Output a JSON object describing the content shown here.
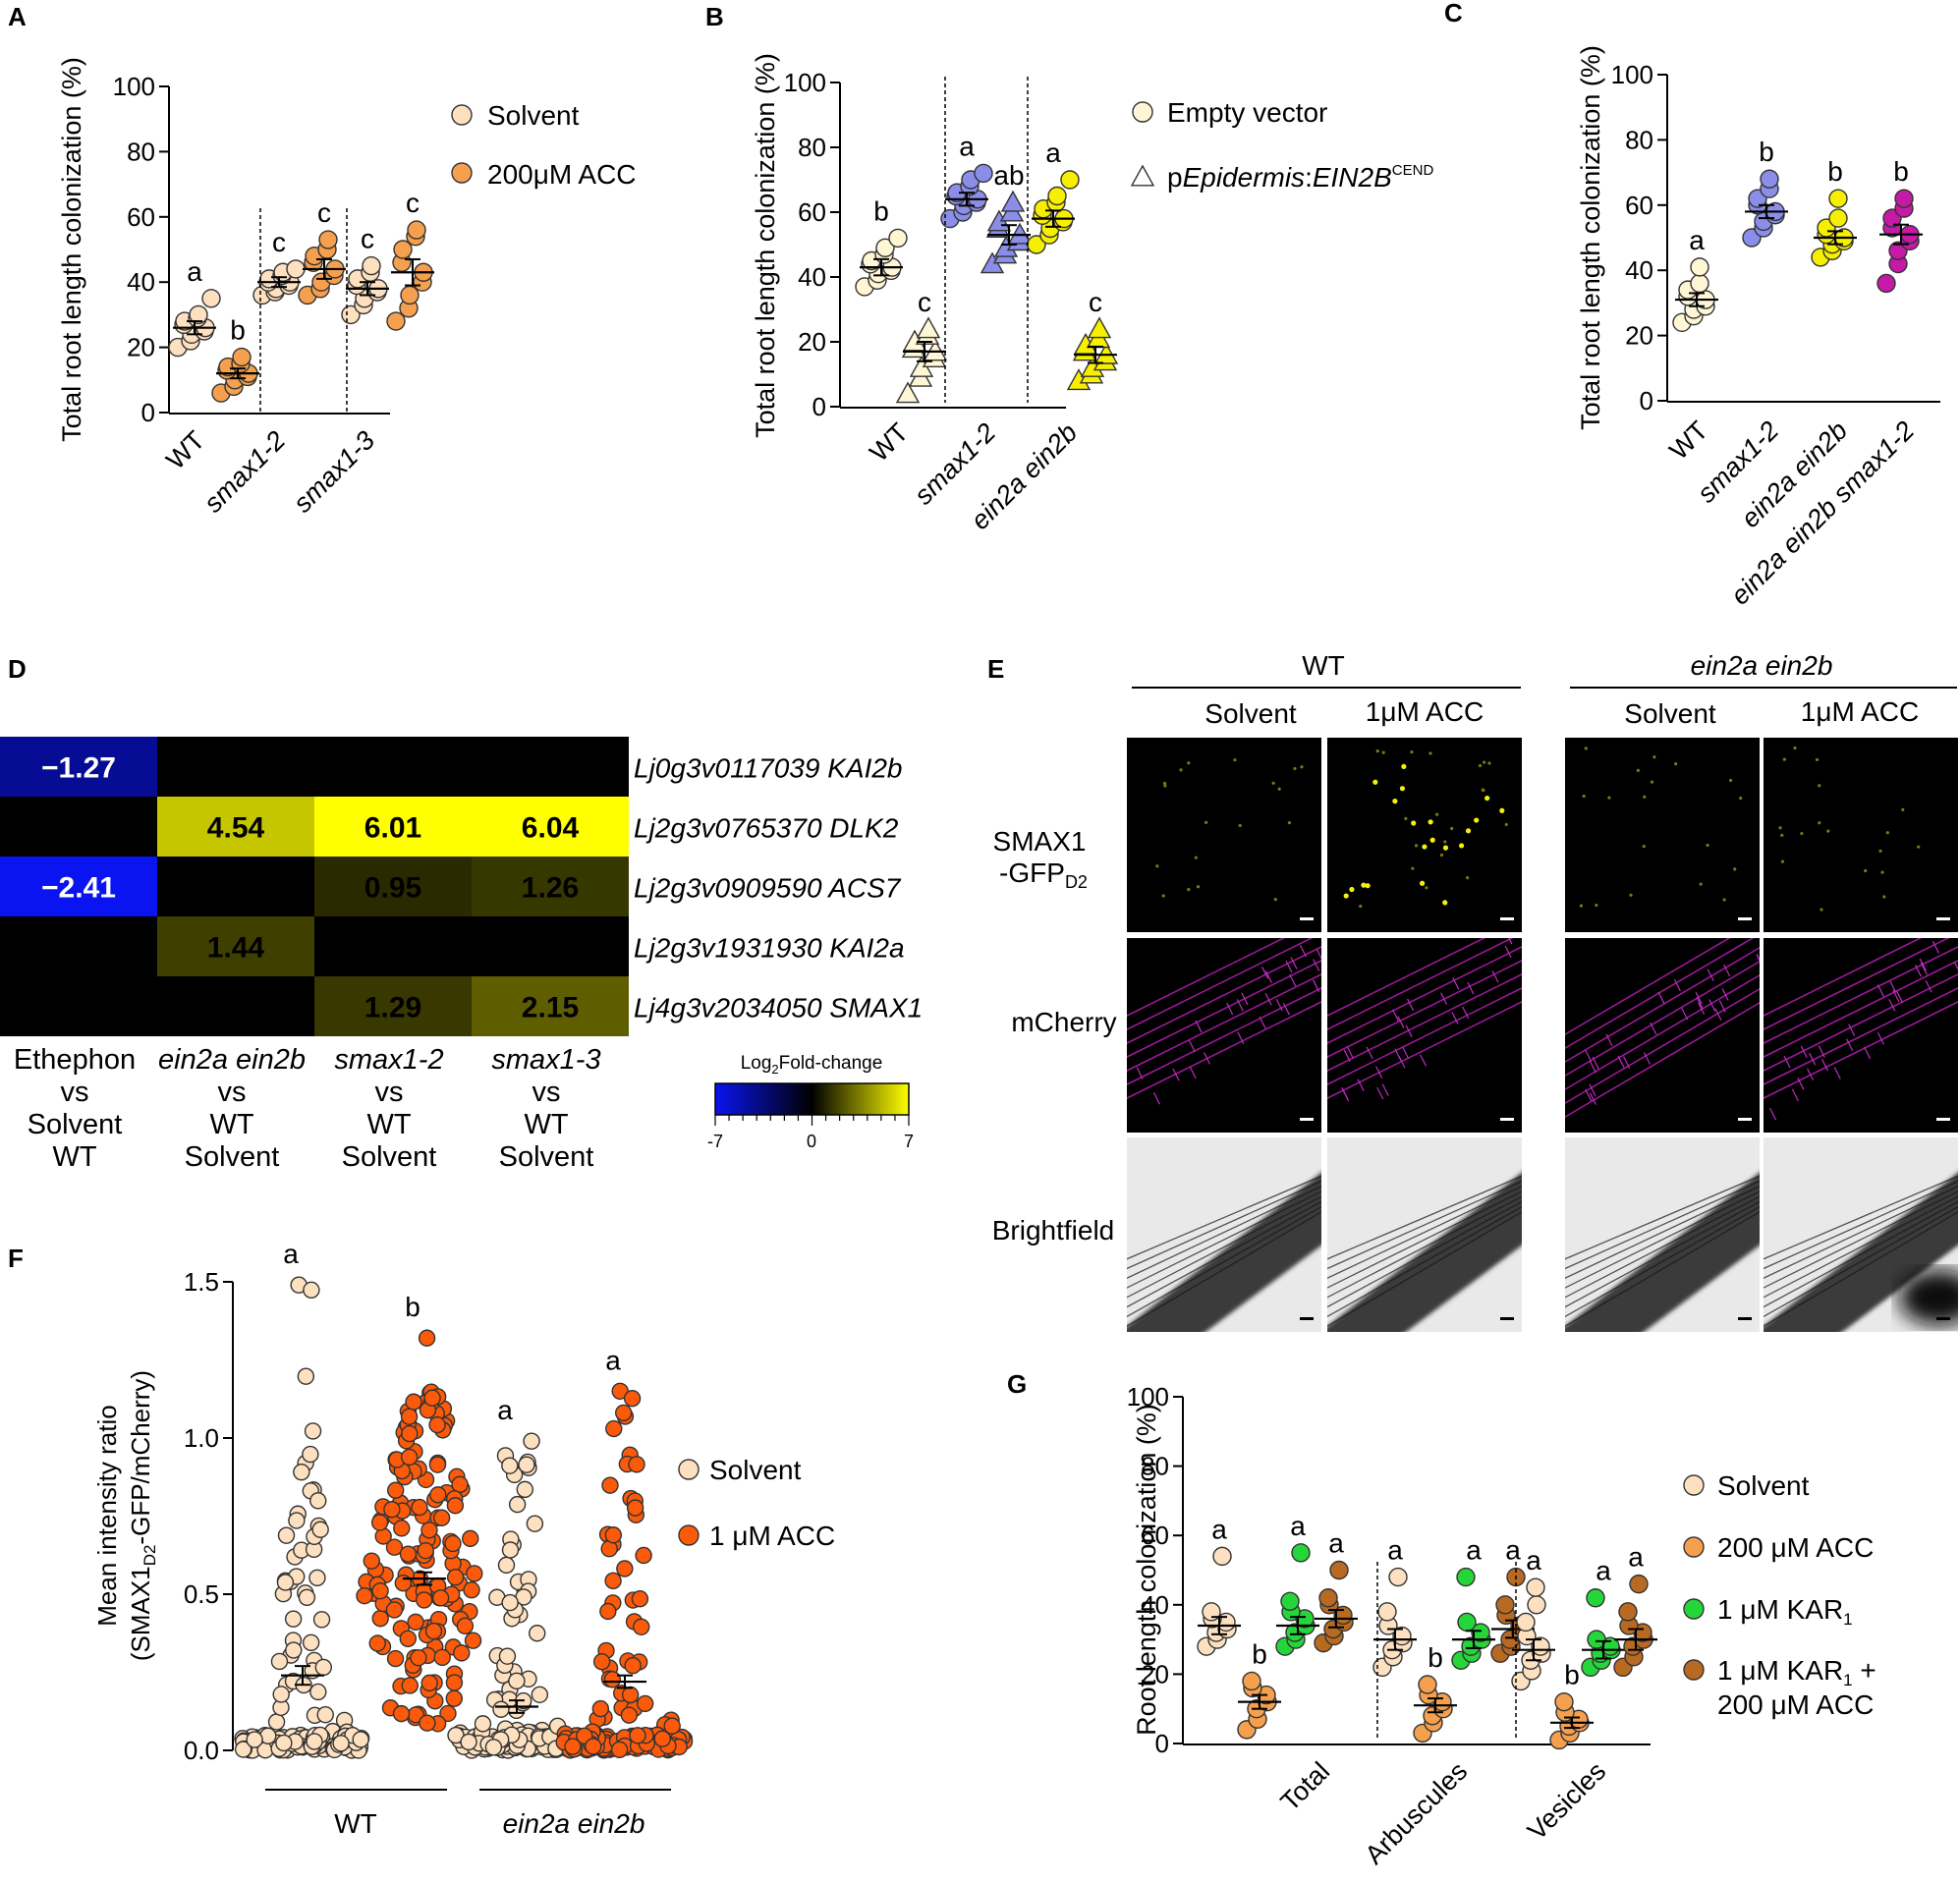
{
  "panels": {
    "A": "A",
    "B": "B",
    "C": "C",
    "D": "D",
    "E": "E",
    "F": "F",
    "G": "G"
  },
  "colors": {
    "solvent": "#fde0bf",
    "acc": "#f4a04e",
    "wt_empty": "#fff6d5",
    "blue": "#8a8ee8",
    "yellow": "#f6f000",
    "magenta": "#c41aa6",
    "f_acc": "#fb5a0a",
    "kar": "#25d63b",
    "kar_acc": "#b86a22"
  },
  "chart_data": [
    {
      "id": "A",
      "type": "scatter",
      "ylabel": "Total root length colonization (%)",
      "ylim": [
        0,
        100
      ],
      "yticks": [
        "0",
        "20",
        "40",
        "60",
        "80",
        "100"
      ],
      "categories": [
        "WT",
        "smax1-2",
        "smax1-3"
      ],
      "legend": [
        "Solvent",
        "200μM ACC"
      ],
      "groups": [
        {
          "cat": "WT",
          "treat": "Solvent",
          "mean": 26,
          "sem": 2,
          "sig": "a",
          "values": [
            20,
            22,
            24,
            25,
            26,
            27,
            28,
            29,
            30,
            35
          ]
        },
        {
          "cat": "WT",
          "treat": "200μM ACC",
          "mean": 12,
          "sem": 1.5,
          "sig": "b",
          "values": [
            6,
            8,
            10,
            11,
            12,
            13,
            14,
            15,
            17
          ]
        },
        {
          "cat": "smax1-2",
          "treat": "Solvent",
          "mean": 40,
          "sem": 1.5,
          "sig": "c",
          "values": [
            36,
            37,
            38,
            39,
            40,
            40,
            41,
            42,
            43,
            44
          ]
        },
        {
          "cat": "smax1-2",
          "treat": "200μM ACC",
          "mean": 44,
          "sem": 3,
          "sig": "c",
          "values": [
            36,
            38,
            40,
            42,
            44,
            46,
            48,
            50,
            53
          ]
        },
        {
          "cat": "smax1-3",
          "treat": "Solvent",
          "mean": 38,
          "sem": 2,
          "sig": "c",
          "values": [
            30,
            33,
            35,
            37,
            38,
            39,
            41,
            43,
            45
          ]
        },
        {
          "cat": "smax1-3",
          "treat": "200μM ACC",
          "mean": 43,
          "sem": 4,
          "sig": "c",
          "values": [
            28,
            32,
            36,
            40,
            43,
            46,
            50,
            54,
            56
          ]
        }
      ]
    },
    {
      "id": "B",
      "type": "scatter",
      "ylabel": "Total root length colonization (%)",
      "ylim": [
        0,
        100
      ],
      "yticks": [
        "0",
        "20",
        "40",
        "60",
        "80",
        "100"
      ],
      "categories": [
        "WT",
        "smax1-2",
        "ein2a ein2b"
      ],
      "legend": [
        "Empty vector",
        "pEpidermis:EIN2BCEND"
      ],
      "legend_parts": {
        "p": "p",
        "epi": "Epidermis",
        "colon": ":",
        "gene": "EIN2B",
        "sup": "CEND"
      },
      "groups": [
        {
          "cat": "WT",
          "treat": "Empty vector",
          "mean": 43,
          "sem": 2.5,
          "sig": "b",
          "values": [
            37,
            39,
            41,
            42,
            43,
            44,
            45,
            47,
            49,
            52
          ]
        },
        {
          "cat": "WT",
          "treat": "pEpidermis:EIN2BCEND",
          "mean": 17,
          "sem": 3,
          "sig": "c",
          "values": [
            4,
            9,
            12,
            15,
            17,
            18,
            20,
            22,
            24
          ]
        },
        {
          "cat": "smax1-2",
          "treat": "Empty vector",
          "mean": 64,
          "sem": 2,
          "sig": "a",
          "values": [
            58,
            60,
            62,
            63,
            64,
            65,
            66,
            68,
            70,
            72
          ]
        },
        {
          "cat": "smax1-2",
          "treat": "pEpidermis:EIN2BCEND",
          "mean": 53,
          "sem": 3,
          "sig": "ab",
          "values": [
            44,
            47,
            49,
            51,
            53,
            55,
            57,
            60,
            63
          ]
        },
        {
          "cat": "ein2a ein2b",
          "treat": "Empty vector",
          "mean": 58,
          "sem": 2.5,
          "sig": "a",
          "values": [
            50,
            53,
            55,
            57,
            58,
            59,
            61,
            63,
            65,
            70
          ]
        },
        {
          "cat": "ein2a ein2b",
          "treat": "pEpidermis:EIN2BCEND",
          "mean": 16,
          "sem": 2.5,
          "sig": "c",
          "values": [
            8,
            10,
            12,
            14,
            16,
            17,
            19,
            21,
            24
          ]
        }
      ]
    },
    {
      "id": "C",
      "type": "scatter",
      "ylabel": "Total root length colonization (%)",
      "ylim": [
        0,
        100
      ],
      "yticks": [
        "0",
        "20",
        "40",
        "60",
        "80",
        "100"
      ],
      "categories": [
        "WT",
        "smax1-2",
        "ein2a ein2b",
        "ein2a ein2b smax1-2"
      ],
      "groups": [
        {
          "cat": "WT",
          "mean": 31,
          "sem": 2,
          "sig": "a",
          "values": [
            24,
            26,
            28,
            29,
            31,
            32,
            34,
            36,
            41
          ]
        },
        {
          "cat": "smax1-2",
          "mean": 58,
          "sem": 2,
          "sig": "b",
          "values": [
            50,
            53,
            55,
            57,
            58,
            60,
            62,
            65,
            68
          ]
        },
        {
          "cat": "ein2a ein2b",
          "mean": 50,
          "sem": 2,
          "sig": "b",
          "values": [
            44,
            46,
            48,
            49,
            50,
            51,
            53,
            56,
            62
          ]
        },
        {
          "cat": "ein2a ein2b smax1-2",
          "mean": 51,
          "sem": 3,
          "sig": "b",
          "values": [
            36,
            42,
            46,
            49,
            51,
            53,
            56,
            59,
            62
          ]
        }
      ]
    },
    {
      "id": "D",
      "type": "heatmap",
      "legend_title_pre": "Log",
      "legend_title_sub": "2",
      "legend_title_post": "Fold-change",
      "scale": [
        -7,
        7
      ],
      "scale_labels": [
        "-7",
        "0",
        "7"
      ],
      "columns": [
        [
          "Ethephon",
          "vs",
          "Solvent",
          "WT"
        ],
        [
          "ein2a ein2b",
          "vs",
          "WT",
          "Solvent"
        ],
        [
          "smax1-2",
          "vs",
          "WT",
          "Solvent"
        ],
        [
          "smax1-3",
          "vs",
          "WT",
          "Solvent"
        ]
      ],
      "rows": [
        {
          "label": "Lj0g3v0117039 KAI2b",
          "values": [
            -1.27,
            null,
            null,
            null
          ],
          "labels": [
            "−1.27",
            "",
            "",
            ""
          ]
        },
        {
          "label": "Lj2g3v0765370 DLK2",
          "values": [
            null,
            4.54,
            6.01,
            6.04
          ],
          "labels": [
            "",
            "4.54",
            "6.01",
            "6.04"
          ]
        },
        {
          "label": "Lj2g3v0909590 ACS7",
          "values": [
            -2.41,
            null,
            0.95,
            1.26
          ],
          "labels": [
            "−2.41",
            "",
            "0.95",
            "1.26"
          ]
        },
        {
          "label": "Lj2g3v1931930 KAI2a",
          "values": [
            null,
            1.44,
            null,
            null
          ],
          "labels": [
            "",
            "1.44",
            "",
            ""
          ]
        },
        {
          "label": "Lj4g3v2034050 SMAX1",
          "values": [
            null,
            null,
            1.29,
            2.15
          ],
          "labels": [
            "",
            "",
            "1.29",
            "2.15"
          ]
        }
      ]
    },
    {
      "id": "F",
      "type": "scatter",
      "ylabel_l1": "Mean intensity ratio",
      "ylabel_l2_pre": "(SMAX1",
      "ylabel_l2_sub": "D2",
      "ylabel_l2_post": "-GFP/mCherry)",
      "ylim": [
        0,
        1.5
      ],
      "yticks": [
        "0.0",
        "0.5",
        "1.0",
        "1.5"
      ],
      "groups_labels": [
        "WT",
        "ein2a ein2b"
      ],
      "legend": [
        "Solvent",
        "1 μM ACC"
      ],
      "groups": [
        {
          "grp": "WT",
          "treat": "Solvent",
          "mean": 0.24,
          "sem": 0.03,
          "sig": "a",
          "max": 1.49
        },
        {
          "grp": "WT",
          "treat": "1 μM ACC",
          "mean": 0.55,
          "sem": 0.02,
          "sig": "b",
          "max": 1.32
        },
        {
          "grp": "ein2a ein2b",
          "treat": "Solvent",
          "mean": 0.14,
          "sem": 0.02,
          "sig": "a",
          "max": 0.99
        },
        {
          "grp": "ein2a ein2b",
          "treat": "1 μM ACC",
          "mean": 0.22,
          "sem": 0.02,
          "sig": "a",
          "max": 1.15
        }
      ]
    },
    {
      "id": "G",
      "type": "scatter",
      "ylabel": "Root length colonization (%)",
      "ylim": [
        0,
        100
      ],
      "yticks": [
        "0",
        "20",
        "40",
        "60",
        "80",
        "100"
      ],
      "categories": [
        "Total",
        "Arbuscules",
        "Vesicles"
      ],
      "legend": [
        "Solvent",
        "200 μM ACC",
        "1 μM KAR",
        "1 μM KAR"
      ],
      "legend_sub": "1",
      "legend_tail": "+",
      "legend_line2": "200 μM ACC",
      "groups": [
        {
          "cat": "Total",
          "treat": "Solvent",
          "mean": 34,
          "sem": 2.5,
          "sig": "a",
          "values": [
            28,
            30,
            32,
            33,
            35,
            36,
            38,
            54
          ]
        },
        {
          "cat": "Total",
          "treat": "200 μM ACC",
          "mean": 12,
          "sem": 2,
          "sig": "b",
          "values": [
            4,
            7,
            10,
            12,
            14,
            16,
            18
          ]
        },
        {
          "cat": "Total",
          "treat": "1 μM KAR1",
          "mean": 34,
          "sem": 2.5,
          "sig": "a",
          "values": [
            28,
            30,
            32,
            34,
            36,
            38,
            41,
            55
          ]
        },
        {
          "cat": "Total",
          "treat": "1 μM KAR1 + 200 μM ACC",
          "mean": 36,
          "sem": 2.5,
          "sig": "a",
          "values": [
            29,
            31,
            33,
            35,
            37,
            40,
            42,
            50
          ]
        },
        {
          "cat": "Arbuscules",
          "treat": "Solvent",
          "mean": 30,
          "sem": 3,
          "sig": "a",
          "values": [
            22,
            25,
            27,
            29,
            31,
            34,
            38,
            48
          ]
        },
        {
          "cat": "Arbuscules",
          "treat": "200 μM ACC",
          "mean": 11,
          "sem": 2,
          "sig": "b",
          "values": [
            3,
            6,
            8,
            10,
            12,
            14,
            17
          ]
        },
        {
          "cat": "Arbuscules",
          "treat": "1 μM KAR1",
          "mean": 30,
          "sem": 2.5,
          "sig": "a",
          "values": [
            24,
            26,
            28,
            30,
            32,
            35,
            48
          ]
        },
        {
          "cat": "Arbuscules",
          "treat": "1 μM KAR1 + 200 μM ACC",
          "mean": 33,
          "sem": 2.5,
          "sig": "a",
          "values": [
            26,
            28,
            30,
            32,
            34,
            37,
            40,
            48
          ]
        },
        {
          "cat": "Vesicles",
          "treat": "Solvent",
          "mean": 27,
          "sem": 3,
          "sig": "a",
          "values": [
            18,
            21,
            24,
            26,
            28,
            31,
            35,
            40,
            45
          ]
        },
        {
          "cat": "Vesicles",
          "treat": "200 μM ACC",
          "mean": 6,
          "sem": 1.5,
          "sig": "b",
          "values": [
            1,
            3,
            5,
            6,
            7,
            9,
            12
          ]
        },
        {
          "cat": "Vesicles",
          "treat": "1 μM KAR1",
          "mean": 27,
          "sem": 2.5,
          "sig": "a",
          "values": [
            22,
            24,
            26,
            27,
            28,
            30,
            42
          ]
        },
        {
          "cat": "Vesicles",
          "treat": "1 μM KAR1 + 200 μM ACC",
          "mean": 30,
          "sem": 3,
          "sig": "a",
          "values": [
            22,
            25,
            28,
            30,
            32,
            34,
            38,
            46
          ]
        }
      ]
    }
  ],
  "micro": {
    "groups": [
      "WT",
      "ein2a ein2b"
    ],
    "conditions": [
      "Solvent",
      "1μM ACC",
      "Solvent",
      "1μM ACC"
    ],
    "rows": [
      "SMAX1",
      "mCherry",
      "Brightfield"
    ],
    "row1_sub": "D2",
    "row1_line2": "-GFP"
  }
}
